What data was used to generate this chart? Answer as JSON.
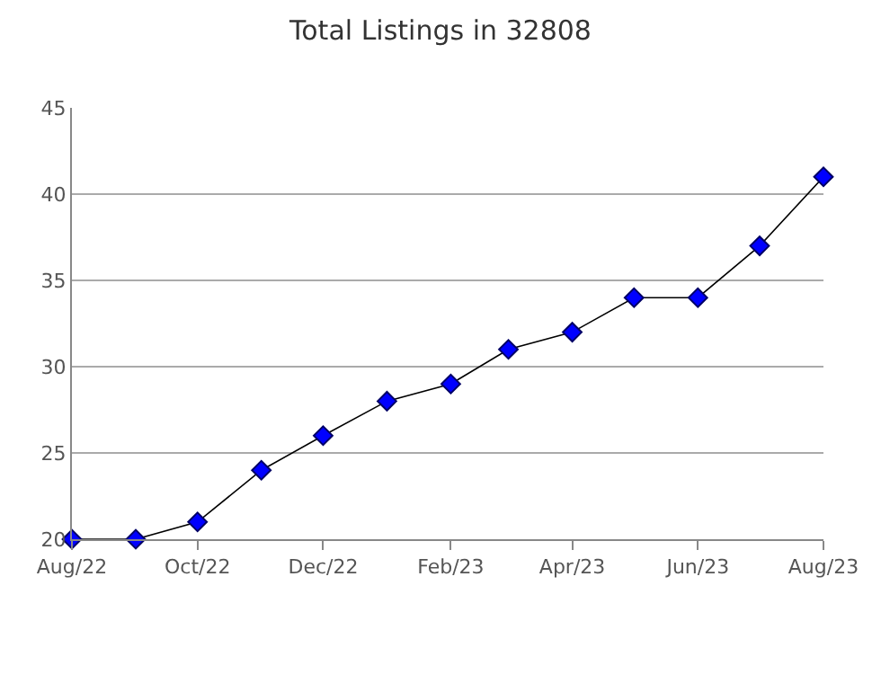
{
  "chart_data": {
    "type": "line",
    "title": "Total Listings in 32808",
    "x": [
      "2022-08",
      "2022-09",
      "2022-10",
      "2022-11",
      "2022-12",
      "2023-01",
      "2023-02",
      "2023-03",
      "2023-04",
      "2023-05",
      "2023-06",
      "2023-07",
      "2023-08"
    ],
    "series": [
      {
        "color": "#0000ff",
        "values": [
          20,
          20,
          21,
          24,
          26,
          28,
          29,
          31,
          32,
          34,
          34,
          37,
          41
        ]
      }
    ],
    "xlim": [
      "2022-08",
      "2023-08"
    ],
    "xticks": [
      {
        "value": "2022-08",
        "label": "Aug/22"
      },
      {
        "value": "2022-10",
        "label": "Oct/22"
      },
      {
        "value": "2022-12",
        "label": "Dec/22"
      },
      {
        "value": "2023-02",
        "label": "Feb/23"
      },
      {
        "value": "2023-04",
        "label": "Apr/23"
      },
      {
        "value": "2023-06",
        "label": "Jun/23"
      },
      {
        "value": "2023-08",
        "label": "Aug/23"
      }
    ],
    "ylim": [
      20,
      45
    ],
    "yticks": [
      20,
      25,
      30,
      35,
      40,
      45
    ],
    "grid": "y",
    "marker": "diamond",
    "line_style": "solid",
    "legend": false
  }
}
